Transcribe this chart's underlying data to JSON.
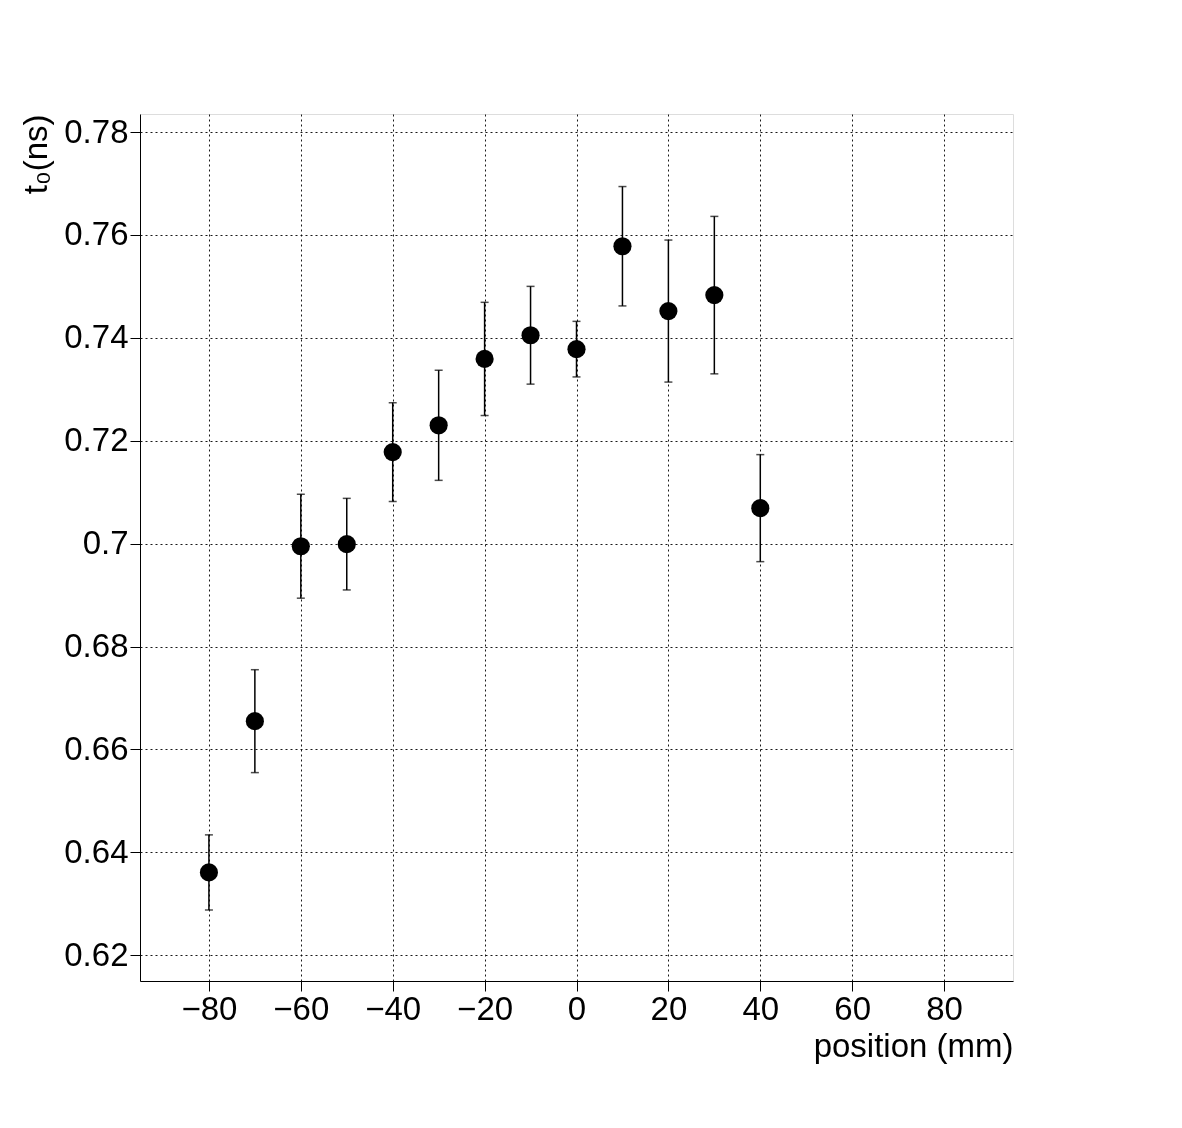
{
  "chart_data": {
    "type": "scatter",
    "xlabel": "position (mm)",
    "ylabel": "t₀(ns)",
    "x": [
      -80,
      -70,
      -60,
      -50,
      -40,
      -30,
      -20,
      -10,
      0,
      10,
      20,
      30,
      40
    ],
    "series": [
      {
        "color": "#000000",
        "values": [
          0.6361,
          0.6655,
          0.6995,
          0.6999,
          0.7178,
          0.723,
          0.7359,
          0.7405,
          0.7378,
          0.7578,
          0.7452,
          0.7483,
          0.7069
        ],
        "errors": [
          0.0073,
          0.01,
          0.0101,
          0.0089,
          0.0096,
          0.0107,
          0.011,
          0.0095,
          0.0054,
          0.0116,
          0.0138,
          0.0153,
          0.0104
        ]
      }
    ],
    "xlim": [
      -95,
      95
    ],
    "ylim": [
      0.615,
      0.7835
    ],
    "xticks": [
      {
        "value": -80,
        "label": "−80"
      },
      {
        "value": -60,
        "label": "−60"
      },
      {
        "value": -40,
        "label": "−40"
      },
      {
        "value": -20,
        "label": "−20"
      },
      0,
      20,
      40,
      60,
      80
    ],
    "yticks": [
      0.62,
      0.64,
      0.66,
      0.68,
      0.7,
      0.72,
      0.74,
      0.76,
      0.78
    ],
    "grid": true,
    "marker": "circle"
  }
}
